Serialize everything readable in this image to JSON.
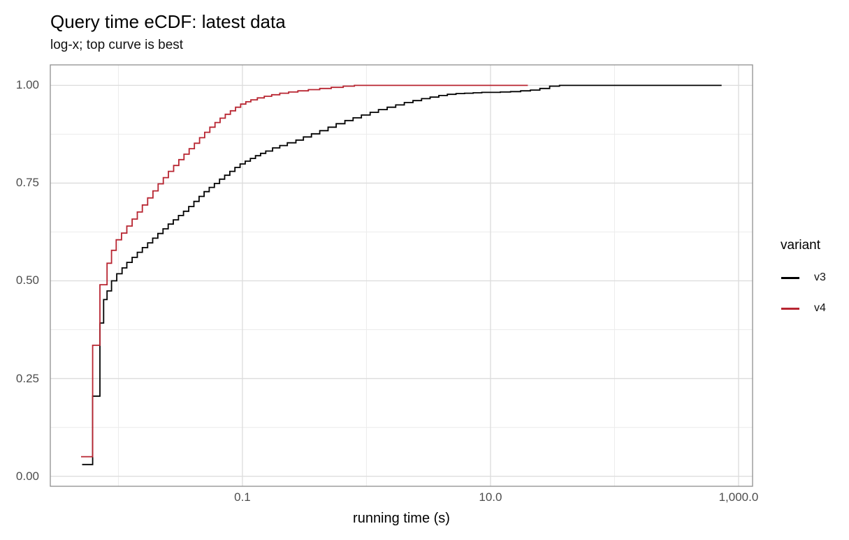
{
  "title": "Query time eCDF: latest data",
  "subtitle": "log-x; top curve is best",
  "x_axis": {
    "label": "running time (s)",
    "scale": "log10",
    "range_log10": [
      -2.549,
      3.113
    ],
    "major_ticks": [
      {
        "value": 0.1,
        "label": "0.1"
      },
      {
        "value": 10,
        "label": "10.0"
      },
      {
        "value": 1000,
        "label": "1,000.0"
      }
    ],
    "minor_ticks": [
      0.01,
      1,
      100
    ]
  },
  "y_axis": {
    "label": "",
    "scale": "linear",
    "range": [
      -0.0257,
      1.0524
    ],
    "major_ticks": [
      {
        "value": 0.0,
        "label": "0.00"
      },
      {
        "value": 0.25,
        "label": "0.25"
      },
      {
        "value": 0.5,
        "label": "0.50"
      },
      {
        "value": 0.75,
        "label": "0.75"
      },
      {
        "value": 1.0,
        "label": "1.00"
      }
    ],
    "minor_ticks": [
      0.125,
      0.375,
      0.625,
      0.875
    ]
  },
  "legend": {
    "title": "variant",
    "position": "right",
    "items": [
      {
        "label": "v3",
        "color": "#000000"
      },
      {
        "label": "v4",
        "color": "#b82531"
      }
    ]
  },
  "colors": {
    "panel_border": "#8f8f8f",
    "grid_major": "#dcdcdc",
    "grid_minor": "#ececec",
    "tick_text": "#4d4d4d"
  },
  "chart_data": {
    "type": "line",
    "subtype": "ecdf-step",
    "title": "Query time eCDF: latest data",
    "subtitle": "log-x; top curve is best",
    "xlabel": "running time (s)",
    "ylabel": "",
    "x_scale": "log10",
    "xlim": [
      0.00283,
      1297
    ],
    "ylim": [
      0,
      1
    ],
    "grid": true,
    "legend_position": "right",
    "series": [
      {
        "name": "v3",
        "color": "#000000",
        "points": [
          [
            0.0051,
            0.03
          ],
          [
            0.0062,
            0.205
          ],
          [
            0.0071,
            0.392
          ],
          [
            0.0076,
            0.452
          ],
          [
            0.0081,
            0.474
          ],
          [
            0.0088,
            0.5
          ],
          [
            0.0097,
            0.518
          ],
          [
            0.0107,
            0.533
          ],
          [
            0.0117,
            0.547
          ],
          [
            0.0129,
            0.56
          ],
          [
            0.0142,
            0.573
          ],
          [
            0.0156,
            0.585
          ],
          [
            0.0172,
            0.597
          ],
          [
            0.0189,
            0.609
          ],
          [
            0.0208,
            0.621
          ],
          [
            0.0229,
            0.633
          ],
          [
            0.0252,
            0.645
          ],
          [
            0.0277,
            0.656
          ],
          [
            0.0305,
            0.667
          ],
          [
            0.0335,
            0.678
          ],
          [
            0.0369,
            0.69
          ],
          [
            0.0406,
            0.703
          ],
          [
            0.0447,
            0.716
          ],
          [
            0.0491,
            0.728
          ],
          [
            0.054,
            0.739
          ],
          [
            0.0594,
            0.749
          ],
          [
            0.0654,
            0.76
          ],
          [
            0.0719,
            0.77
          ],
          [
            0.0791,
            0.78
          ],
          [
            0.087,
            0.79
          ],
          [
            0.0957,
            0.799
          ],
          [
            0.1053,
            0.806
          ],
          [
            0.1158,
            0.813
          ],
          [
            0.1274,
            0.82
          ],
          [
            0.1401,
            0.826
          ],
          [
            0.1541,
            0.832
          ],
          [
            0.175,
            0.84
          ],
          [
            0.2,
            0.846
          ],
          [
            0.23,
            0.853
          ],
          [
            0.27,
            0.86
          ],
          [
            0.31,
            0.868
          ],
          [
            0.36,
            0.876
          ],
          [
            0.42,
            0.884
          ],
          [
            0.49,
            0.893
          ],
          [
            0.57,
            0.902
          ],
          [
            0.67,
            0.91
          ],
          [
            0.78,
            0.917
          ],
          [
            0.91,
            0.924
          ],
          [
            1.07,
            0.931
          ],
          [
            1.25,
            0.938
          ],
          [
            1.47,
            0.944
          ],
          [
            1.72,
            0.95
          ],
          [
            2.02,
            0.956
          ],
          [
            2.37,
            0.961
          ],
          [
            2.78,
            0.966
          ],
          [
            3.26,
            0.97
          ],
          [
            3.83,
            0.974
          ],
          [
            4.49,
            0.977
          ],
          [
            5.27,
            0.979
          ],
          [
            6.18,
            0.98
          ],
          [
            7.25,
            0.981
          ],
          [
            8.51,
            0.982
          ],
          [
            10.0,
            0.982
          ],
          [
            12.0,
            0.983
          ],
          [
            14.5,
            0.984
          ],
          [
            17.5,
            0.986
          ],
          [
            21.0,
            0.988
          ],
          [
            25.0,
            0.992
          ],
          [
            30.0,
            0.998
          ],
          [
            36.0,
            1.0
          ],
          [
            730,
            1.0
          ]
        ]
      },
      {
        "name": "v4",
        "color": "#b82531",
        "points": [
          [
            0.005,
            0.05
          ],
          [
            0.0062,
            0.335
          ],
          [
            0.0071,
            0.49
          ],
          [
            0.0081,
            0.545
          ],
          [
            0.0088,
            0.578
          ],
          [
            0.0096,
            0.605
          ],
          [
            0.0106,
            0.622
          ],
          [
            0.0117,
            0.64
          ],
          [
            0.0129,
            0.658
          ],
          [
            0.0142,
            0.676
          ],
          [
            0.0156,
            0.694
          ],
          [
            0.0172,
            0.712
          ],
          [
            0.019,
            0.73
          ],
          [
            0.0209,
            0.748
          ],
          [
            0.023,
            0.764
          ],
          [
            0.0253,
            0.78
          ],
          [
            0.0279,
            0.795
          ],
          [
            0.0307,
            0.81
          ],
          [
            0.0338,
            0.824
          ],
          [
            0.0372,
            0.838
          ],
          [
            0.041,
            0.852
          ],
          [
            0.0451,
            0.866
          ],
          [
            0.0496,
            0.88
          ],
          [
            0.0546,
            0.893
          ],
          [
            0.0601,
            0.905
          ],
          [
            0.0661,
            0.916
          ],
          [
            0.0727,
            0.926
          ],
          [
            0.08,
            0.935
          ],
          [
            0.088,
            0.944
          ],
          [
            0.0968,
            0.952
          ],
          [
            0.1065,
            0.958
          ],
          [
            0.117,
            0.963
          ],
          [
            0.132,
            0.968
          ],
          [
            0.15,
            0.972
          ],
          [
            0.172,
            0.976
          ],
          [
            0.2,
            0.98
          ],
          [
            0.236,
            0.983
          ],
          [
            0.28,
            0.986
          ],
          [
            0.34,
            0.989
          ],
          [
            0.42,
            0.992
          ],
          [
            0.52,
            0.995
          ],
          [
            0.65,
            0.998
          ],
          [
            0.8,
            1.0
          ],
          [
            20.0,
            1.0
          ]
        ]
      }
    ]
  }
}
